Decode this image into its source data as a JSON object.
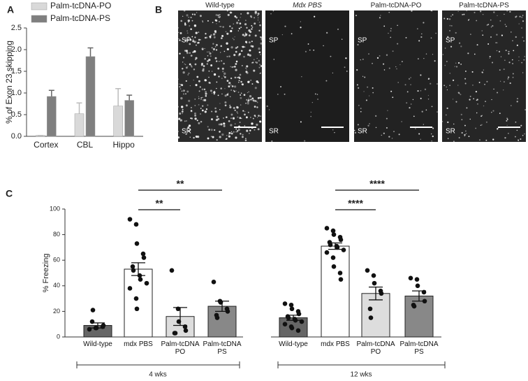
{
  "chart_data": [
    {
      "type": "bar",
      "panel": "A",
      "ylabel": "% of Exon 23 skipping",
      "categories": [
        "Cortex",
        "CBL",
        "Hippo"
      ],
      "series": [
        {
          "name": "Palm-tcDNA-PO",
          "color": "#d9d9d9",
          "values": [
            0.02,
            0.52,
            0.7
          ],
          "errors": [
            0.0,
            0.25,
            0.4
          ]
        },
        {
          "name": "Palm-tcDNA-PS",
          "color": "#7f7f7f",
          "values": [
            0.92,
            1.84,
            0.83
          ],
          "errors": [
            0.14,
            0.2,
            0.12
          ]
        }
      ],
      "ylim": [
        0,
        2.5
      ],
      "yticks": [
        {
          "value": 0,
          "label": "0.0"
        },
        0.5,
        {
          "value": 1,
          "label": "1.0"
        },
        1.5,
        {
          "value": 2,
          "label": "2.0"
        },
        2.5
      ],
      "legend": "top-left"
    },
    {
      "type": "bar_scatter",
      "panel": "C",
      "ylabel": "% Freezing",
      "categories": [
        "Wild-type",
        "mdx PBS",
        "Palm-tcDNA PO",
        "Palm-tcDNA PS",
        "Wild-type",
        "mdx PBS",
        "Palm-tcDNA PO",
        "Palm-tcDNA PS"
      ],
      "values": [
        9,
        53,
        16,
        24,
        15,
        71,
        34,
        32
      ],
      "errors": [
        2,
        5,
        7,
        4,
        2,
        2.5,
        5,
        4
      ],
      "colors": [
        "#666666",
        "#ffffff",
        "#dddddd",
        "#888888",
        "#666666",
        "#ffffff",
        "#dddddd",
        "#888888"
      ],
      "points": [
        [
          6,
          7,
          7,
          8,
          9,
          12,
          21
        ],
        [
          92,
          88,
          73,
          65,
          62,
          55,
          52,
          48,
          45,
          42,
          38,
          30,
          22
        ],
        [
          52,
          22,
          12,
          8,
          5,
          3,
          3
        ],
        [
          43,
          28,
          27,
          22,
          20,
          17,
          15
        ],
        [
          26,
          25,
          22,
          20,
          18,
          16,
          15,
          14,
          13,
          12,
          10,
          8,
          7,
          5
        ],
        [
          85,
          83,
          80,
          78,
          76,
          74,
          72,
          71,
          70,
          68,
          66,
          62,
          55,
          50,
          45
        ],
        [
          52,
          48,
          42,
          36,
          34,
          22,
          15
        ],
        [
          46,
          45,
          40,
          35,
          28,
          25,
          24
        ]
      ],
      "ylim": [
        0,
        100
      ],
      "yticks": [
        0,
        20,
        40,
        60,
        80,
        100
      ],
      "group_labels": [
        "4 wks",
        "12 wks"
      ],
      "annotations": [
        "**",
        "**",
        "****",
        "****"
      ]
    }
  ],
  "panel_b": {
    "label": "B",
    "images": [
      {
        "title": "Wild-type",
        "top": "SP",
        "bottom": "SR"
      },
      {
        "title": "Mdx PBS",
        "top": "SP",
        "bottom": "SR"
      },
      {
        "title": "Palm-tcDNA-PO",
        "top": "SP",
        "bottom": "SR"
      },
      {
        "title": "Palm-tcDNA-PS",
        "top": "SP",
        "bottom": "SR"
      }
    ]
  }
}
